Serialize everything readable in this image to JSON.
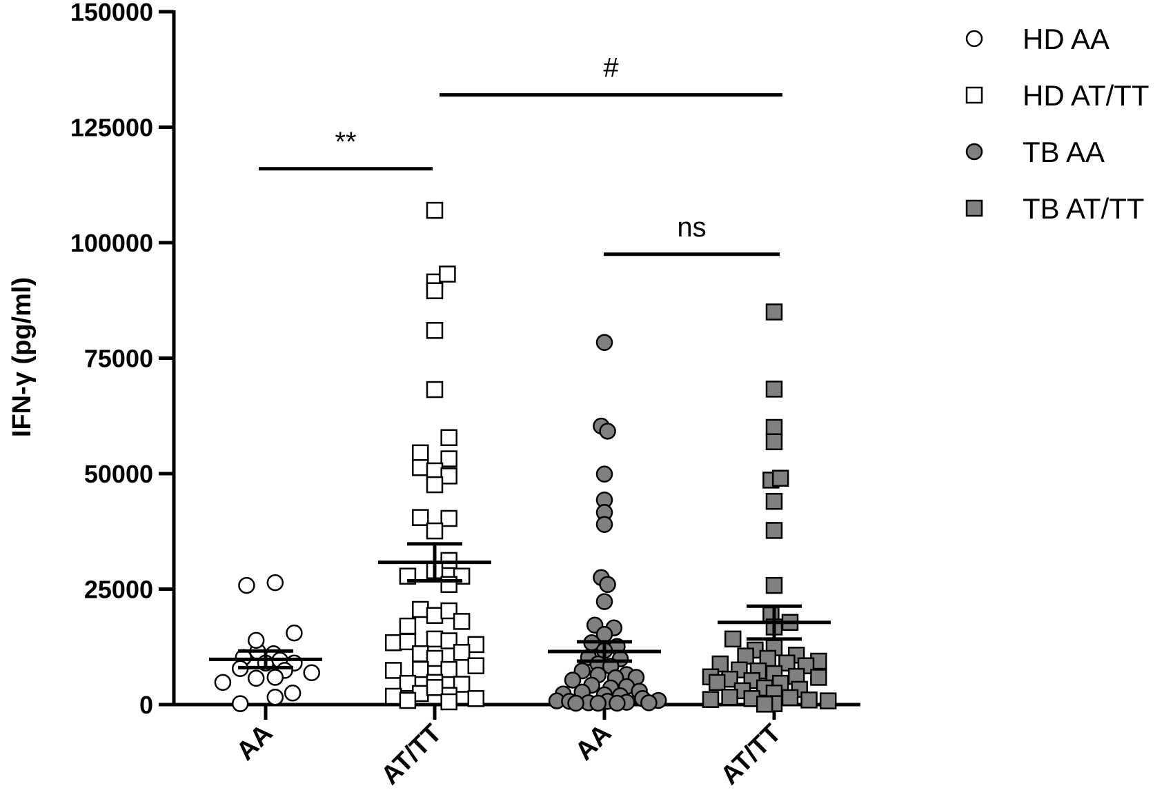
{
  "chart_data": {
    "type": "scatter",
    "ylabel": "IFN-γ (pg/ml)",
    "ylim": [
      0,
      150000
    ],
    "yticks": [
      0,
      25000,
      50000,
      75000,
      100000,
      125000,
      150000
    ],
    "yticklabels": [
      "0",
      "25000",
      "50000",
      "75000",
      "100000",
      "125000",
      "150000"
    ],
    "categories": [
      "AA",
      "AT/TT",
      "AA",
      "AT/TT"
    ],
    "legend_position": "top-right",
    "series": [
      {
        "name": "HD AA",
        "marker": "circle",
        "fill": "#ffffff",
        "mean": 9800,
        "sem_low": 8000,
        "sem_high": 11600,
        "points": [
          {
            "x": -0.12,
            "y": 25800
          },
          {
            "x": 0.06,
            "y": 26400
          },
          {
            "x": -0.05,
            "y": 11500
          },
          {
            "x": 0.05,
            "y": 11000
          },
          {
            "x": -0.14,
            "y": 10200
          },
          {
            "x": -0.06,
            "y": 13900
          },
          {
            "x": 0.18,
            "y": 15500
          },
          {
            "x": 0.0,
            "y": 9000
          },
          {
            "x": 0.09,
            "y": 9600
          },
          {
            "x": -0.16,
            "y": 7800
          },
          {
            "x": 0.18,
            "y": 9000
          },
          {
            "x": 0.12,
            "y": 7400
          },
          {
            "x": -0.27,
            "y": 4800
          },
          {
            "x": -0.06,
            "y": 5700
          },
          {
            "x": 0.06,
            "y": 5900
          },
          {
            "x": 0.29,
            "y": 6900
          },
          {
            "x": 0.17,
            "y": 2500
          },
          {
            "x": 0.06,
            "y": 1600
          },
          {
            "x": -0.16,
            "y": 200
          }
        ]
      },
      {
        "name": "HD AT/TT",
        "marker": "square",
        "fill": "#ffffff",
        "mean": 30800,
        "sem_low": 26800,
        "sem_high": 34800,
        "points": [
          {
            "x": 0.0,
            "y": 107000
          },
          {
            "x": 0.0,
            "y": 91500
          },
          {
            "x": 0.08,
            "y": 93200
          },
          {
            "x": 0.0,
            "y": 89600
          },
          {
            "x": 0.0,
            "y": 81000
          },
          {
            "x": 0.0,
            "y": 68200
          },
          {
            "x": 0.09,
            "y": 57800
          },
          {
            "x": -0.09,
            "y": 54500
          },
          {
            "x": 0.09,
            "y": 53200
          },
          {
            "x": -0.09,
            "y": 51300
          },
          {
            "x": 0.0,
            "y": 50600
          },
          {
            "x": 0.09,
            "y": 49500
          },
          {
            "x": 0.0,
            "y": 47600
          },
          {
            "x": -0.09,
            "y": 40500
          },
          {
            "x": 0.09,
            "y": 40300
          },
          {
            "x": 0.0,
            "y": 37600
          },
          {
            "x": 0.09,
            "y": 31200
          },
          {
            "x": -0.17,
            "y": 27800
          },
          {
            "x": 0.17,
            "y": 27800
          },
          {
            "x": 0.0,
            "y": 29000
          },
          {
            "x": 0.09,
            "y": 26000
          },
          {
            "x": -0.09,
            "y": 20600
          },
          {
            "x": 0.0,
            "y": 19300
          },
          {
            "x": 0.09,
            "y": 20300
          },
          {
            "x": 0.17,
            "y": 18000
          },
          {
            "x": -0.17,
            "y": 17000
          },
          {
            "x": -0.26,
            "y": 13400
          },
          {
            "x": -0.17,
            "y": 13600
          },
          {
            "x": 0.0,
            "y": 14200
          },
          {
            "x": 0.09,
            "y": 13800
          },
          {
            "x": 0.26,
            "y": 13000
          },
          {
            "x": -0.09,
            "y": 11000
          },
          {
            "x": 0.17,
            "y": 11300
          },
          {
            "x": 0.0,
            "y": 10000
          },
          {
            "x": -0.26,
            "y": 7400
          },
          {
            "x": -0.09,
            "y": 7600
          },
          {
            "x": 0.09,
            "y": 7600
          },
          {
            "x": 0.26,
            "y": 8400
          },
          {
            "x": -0.17,
            "y": 4600
          },
          {
            "x": 0.0,
            "y": 4800
          },
          {
            "x": 0.17,
            "y": 4400
          },
          {
            "x": -0.26,
            "y": 1800
          },
          {
            "x": -0.09,
            "y": 2400
          },
          {
            "x": 0.09,
            "y": 2000
          },
          {
            "x": 0.26,
            "y": 1300
          },
          {
            "x": 0.0,
            "y": 3700
          },
          {
            "x": 0.09,
            "y": 600
          },
          {
            "x": -0.17,
            "y": 900
          }
        ]
      },
      {
        "name": "TB AA",
        "marker": "circle",
        "fill": "#808080",
        "mean": 11500,
        "sem_low": 9400,
        "sem_high": 13600,
        "points": [
          {
            "x": 0.0,
            "y": 78400
          },
          {
            "x": -0.02,
            "y": 60300
          },
          {
            "x": 0.02,
            "y": 59200
          },
          {
            "x": 0.0,
            "y": 49900
          },
          {
            "x": 0.0,
            "y": 44300
          },
          {
            "x": 0.0,
            "y": 41600
          },
          {
            "x": 0.0,
            "y": 39000
          },
          {
            "x": -0.02,
            "y": 27500
          },
          {
            "x": 0.02,
            "y": 26000
          },
          {
            "x": 0.0,
            "y": 22300
          },
          {
            "x": -0.06,
            "y": 17200
          },
          {
            "x": 0.06,
            "y": 16600
          },
          {
            "x": 0.0,
            "y": 15200
          },
          {
            "x": -0.08,
            "y": 13400
          },
          {
            "x": 0.08,
            "y": 12600
          },
          {
            "x": 0.0,
            "y": 11700
          },
          {
            "x": -0.1,
            "y": 10200
          },
          {
            "x": 0.1,
            "y": 9900
          },
          {
            "x": -0.04,
            "y": 8800
          },
          {
            "x": 0.04,
            "y": 8300
          },
          {
            "x": -0.14,
            "y": 7300
          },
          {
            "x": 0.14,
            "y": 6500
          },
          {
            "x": -0.04,
            "y": 6400
          },
          {
            "x": 0.07,
            "y": 5800
          },
          {
            "x": 0.2,
            "y": 5900
          },
          {
            "x": -0.2,
            "y": 5300
          },
          {
            "x": -0.08,
            "y": 4200
          },
          {
            "x": 0.04,
            "y": 3600
          },
          {
            "x": 0.14,
            "y": 3900
          },
          {
            "x": 0.22,
            "y": 2900
          },
          {
            "x": -0.26,
            "y": 2300
          },
          {
            "x": -0.14,
            "y": 2700
          },
          {
            "x": 0.0,
            "y": 2100
          },
          {
            "x": 0.1,
            "y": 1900
          },
          {
            "x": -0.3,
            "y": 800
          },
          {
            "x": -0.22,
            "y": 700
          },
          {
            "x": -0.1,
            "y": 400
          },
          {
            "x": 0.02,
            "y": 700
          },
          {
            "x": 0.14,
            "y": 500
          },
          {
            "x": 0.24,
            "y": 1300
          },
          {
            "x": 0.34,
            "y": 900
          },
          {
            "x": 0.28,
            "y": 400
          },
          {
            "x": -0.04,
            "y": 300
          },
          {
            "x": 0.08,
            "y": 300
          },
          {
            "x": -0.18,
            "y": 300
          }
        ]
      },
      {
        "name": "TB AT/TT",
        "marker": "square",
        "fill": "#808080",
        "mean": 17800,
        "sem_low": 14200,
        "sem_high": 21300,
        "points": [
          {
            "x": 0.0,
            "y": 85000
          },
          {
            "x": 0.0,
            "y": 68300
          },
          {
            "x": 0.0,
            "y": 60000
          },
          {
            "x": 0.0,
            "y": 56900
          },
          {
            "x": -0.02,
            "y": 48600
          },
          {
            "x": 0.04,
            "y": 49000
          },
          {
            "x": 0.0,
            "y": 44000
          },
          {
            "x": 0.0,
            "y": 37700
          },
          {
            "x": 0.0,
            "y": 25800
          },
          {
            "x": -0.02,
            "y": 19400
          },
          {
            "x": 0.1,
            "y": 17800
          },
          {
            "x": 0.0,
            "y": 16800
          },
          {
            "x": -0.26,
            "y": 14200
          },
          {
            "x": 0.0,
            "y": 12300
          },
          {
            "x": -0.12,
            "y": 11800
          },
          {
            "x": -0.18,
            "y": 10500
          },
          {
            "x": 0.14,
            "y": 10700
          },
          {
            "x": -0.04,
            "y": 10000
          },
          {
            "x": 0.28,
            "y": 9400
          },
          {
            "x": -0.34,
            "y": 8800
          },
          {
            "x": 0.08,
            "y": 9000
          },
          {
            "x": 0.2,
            "y": 8400
          },
          {
            "x": -0.22,
            "y": 7500
          },
          {
            "x": -0.1,
            "y": 7300
          },
          {
            "x": 0.0,
            "y": 6700
          },
          {
            "x": -0.4,
            "y": 6000
          },
          {
            "x": 0.14,
            "y": 6100
          },
          {
            "x": 0.28,
            "y": 5900
          },
          {
            "x": -0.14,
            "y": 5200
          },
          {
            "x": -0.28,
            "y": 5500
          },
          {
            "x": -0.36,
            "y": 4800
          },
          {
            "x": 0.04,
            "y": 4600
          },
          {
            "x": -0.06,
            "y": 3600
          },
          {
            "x": 0.16,
            "y": 3300
          },
          {
            "x": -0.2,
            "y": 3000
          },
          {
            "x": 0.0,
            "y": 2500
          },
          {
            "x": -0.28,
            "y": 1600
          },
          {
            "x": 0.1,
            "y": 1500
          },
          {
            "x": -0.4,
            "y": 1100
          },
          {
            "x": -0.14,
            "y": 1300
          },
          {
            "x": 0.22,
            "y": 1000
          },
          {
            "x": 0.34,
            "y": 800
          },
          {
            "x": 0.0,
            "y": 200
          },
          {
            "x": -0.06,
            "y": 100
          }
        ]
      }
    ],
    "annotations": [
      {
        "text": "**",
        "from": 0,
        "to": 1,
        "y": 116000
      },
      {
        "text": "#",
        "from": 1,
        "to": 3,
        "y": 132000
      },
      {
        "text": "ns",
        "from": 2,
        "to": 3,
        "y": 97500
      }
    ]
  }
}
